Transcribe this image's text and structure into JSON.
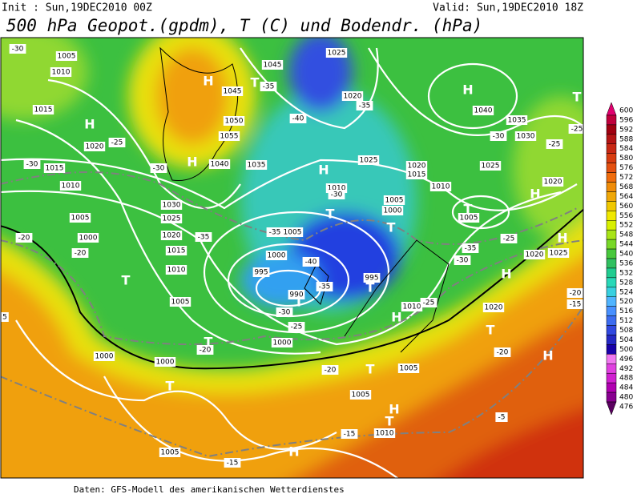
{
  "header": {
    "init": "Init : Sun,19DEC2010 00Z",
    "valid": "Valid: Sun,19DEC2010 18Z",
    "title": "500 hPa Geopot.(gpdm), T (C) und Bodendr. (hPa)"
  },
  "footer": "Daten: GFS-Modell des amerikanischen Wetterdienstes",
  "colorbar": {
    "values": [
      600,
      596,
      592,
      588,
      584,
      580,
      576,
      572,
      568,
      564,
      560,
      556,
      552,
      548,
      544,
      540,
      536,
      532,
      528,
      524,
      520,
      516,
      512,
      508,
      504,
      500,
      496,
      492,
      488,
      484,
      480,
      476
    ],
    "colors": [
      "#e0006e",
      "#c0003c",
      "#a00010",
      "#b41414",
      "#c82814",
      "#d83c10",
      "#e45010",
      "#f06c0c",
      "#f08c08",
      "#f0a808",
      "#f0c800",
      "#f0e800",
      "#d8f000",
      "#a8e418",
      "#78d828",
      "#48c83c",
      "#30c060",
      "#20cc90",
      "#28d8b8",
      "#38d0e0",
      "#50b4ff",
      "#4890ff",
      "#3c6cf0",
      "#3048e0",
      "#2428c4",
      "#1800a8",
      "#f078f0",
      "#e040e0",
      "#d020d0",
      "#b000b0",
      "#880090",
      "#5a0060"
    ]
  },
  "map_labels": [
    "1005",
    "1010",
    "1015",
    "H",
    "1020",
    "-25",
    "-30",
    "1015",
    "1010",
    "1005",
    "1000",
    "-20",
    "-20",
    "H",
    "1045",
    "1050",
    "1055",
    "1040",
    "1035",
    "H",
    "-30",
    "1030",
    "1025",
    "1020",
    "-35",
    "1015",
    "1010",
    "T",
    "1005",
    "1045",
    "T",
    "-35",
    "1025",
    "1020",
    "-40",
    "-35",
    "1025",
    "H",
    "1010",
    "-30",
    "T",
    "1005",
    "-35",
    "1000",
    "-40",
    "995",
    "-35",
    "990",
    "T",
    "995",
    "T",
    "-30",
    "-25",
    "1000",
    "1005",
    "1000",
    "T",
    "1020",
    "1015",
    "1010",
    "T",
    "1005",
    "-35",
    "-30",
    "1025",
    "H",
    "1040",
    "1035",
    "-30",
    "1030",
    "T",
    "-25",
    "-25",
    "1020",
    "H",
    "-25",
    "1020",
    "H",
    "1025",
    "H",
    "1020",
    "T",
    "-20",
    "H",
    "T",
    "-20",
    "1000",
    "1000",
    "T",
    "-20",
    "T",
    "1005",
    "1005",
    "H",
    "T",
    "1010",
    "-15",
    "1005",
    "-15",
    "H",
    "-5",
    "1010",
    "-25",
    "H",
    "-20",
    "-15",
    "5",
    "-30"
  ]
}
